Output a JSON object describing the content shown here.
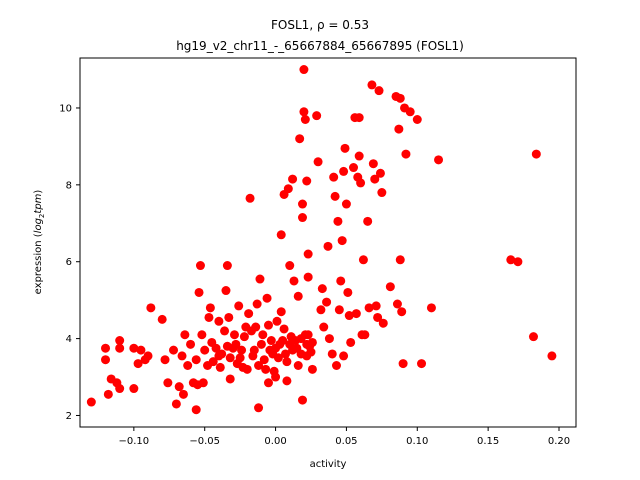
{
  "chart_data": {
    "type": "scatter",
    "title": "FOSL1, ρ = 0.53",
    "subtitle": "hg19_v2_chr11_-_65667884_65667895 (FOSL1)",
    "xlabel": "activity",
    "ylabel_prefix": "expression (",
    "ylabel_math": "log",
    "ylabel_sub": "2",
    "ylabel_math2": "tpm",
    "ylabel_suffix": ")",
    "xlim": [
      -0.138,
      0.212
    ],
    "ylim": [
      1.7,
      11.3
    ],
    "xticks": [
      -0.1,
      -0.05,
      0.0,
      0.05,
      0.1,
      0.15,
      0.2
    ],
    "xtick_labels": [
      "−0.10",
      "−0.05",
      "0.00",
      "0.05",
      "0.10",
      "0.15",
      "0.20"
    ],
    "yticks": [
      2,
      4,
      6,
      8,
      10
    ],
    "ytick_labels": [
      "2",
      "4",
      "6",
      "8",
      "10"
    ],
    "grid": false,
    "marker_color": "#ff0000",
    "points": [
      [
        -0.13,
        2.35
      ],
      [
        -0.12,
        3.75
      ],
      [
        -0.12,
        3.45
      ],
      [
        -0.118,
        2.55
      ],
      [
        -0.116,
        2.95
      ],
      [
        -0.112,
        2.85
      ],
      [
        -0.11,
        3.75
      ],
      [
        -0.11,
        3.95
      ],
      [
        -0.11,
        2.7
      ],
      [
        -0.1,
        3.75
      ],
      [
        -0.1,
        2.7
      ],
      [
        -0.097,
        3.35
      ],
      [
        -0.095,
        3.7
      ],
      [
        -0.092,
        3.45
      ],
      [
        -0.09,
        3.55
      ],
      [
        -0.088,
        4.8
      ],
      [
        -0.08,
        4.5
      ],
      [
        -0.078,
        3.45
      ],
      [
        -0.076,
        2.85
      ],
      [
        -0.072,
        3.7
      ],
      [
        -0.07,
        2.3
      ],
      [
        -0.068,
        2.75
      ],
      [
        -0.066,
        3.55
      ],
      [
        -0.065,
        2.55
      ],
      [
        -0.064,
        4.1
      ],
      [
        -0.062,
        3.3
      ],
      [
        -0.06,
        3.85
      ],
      [
        -0.058,
        2.85
      ],
      [
        -0.056,
        2.15
      ],
      [
        -0.056,
        3.45
      ],
      [
        -0.055,
        2.8
      ],
      [
        -0.054,
        5.2
      ],
      [
        -0.053,
        5.9
      ],
      [
        -0.052,
        4.1
      ],
      [
        -0.051,
        2.85
      ],
      [
        -0.05,
        3.7
      ],
      [
        -0.048,
        3.3
      ],
      [
        -0.047,
        4.55
      ],
      [
        -0.046,
        4.8
      ],
      [
        -0.045,
        3.9
      ],
      [
        -0.044,
        3.4
      ],
      [
        -0.042,
        3.75
      ],
      [
        -0.04,
        3.55
      ],
      [
        -0.04,
        4.45
      ],
      [
        -0.039,
        3.25
      ],
      [
        -0.038,
        3.6
      ],
      [
        -0.036,
        4.2
      ],
      [
        -0.035,
        5.25
      ],
      [
        -0.034,
        5.9
      ],
      [
        -0.034,
        3.8
      ],
      [
        -0.033,
        4.55
      ],
      [
        -0.032,
        3.5
      ],
      [
        -0.032,
        2.95
      ],
      [
        -0.03,
        3.75
      ],
      [
        -0.029,
        4.1
      ],
      [
        -0.028,
        3.85
      ],
      [
        -0.027,
        3.35
      ],
      [
        -0.026,
        4.85
      ],
      [
        -0.025,
        3.5
      ],
      [
        -0.024,
        3.7
      ],
      [
        -0.023,
        3.25
      ],
      [
        -0.022,
        4.05
      ],
      [
        -0.021,
        4.3
      ],
      [
        -0.02,
        3.2
      ],
      [
        -0.019,
        4.65
      ],
      [
        -0.018,
        7.65
      ],
      [
        -0.017,
        4.2
      ],
      [
        -0.016,
        3.55
      ],
      [
        -0.015,
        3.7
      ],
      [
        -0.014,
        4.3
      ],
      [
        -0.013,
        4.9
      ],
      [
        -0.012,
        3.3
      ],
      [
        -0.012,
        2.2
      ],
      [
        -0.011,
        5.55
      ],
      [
        -0.01,
        3.85
      ],
      [
        -0.009,
        4.1
      ],
      [
        -0.008,
        3.45
      ],
      [
        -0.007,
        3.2
      ],
      [
        -0.006,
        5.05
      ],
      [
        -0.005,
        4.35
      ],
      [
        -0.005,
        2.85
      ],
      [
        -0.004,
        3.7
      ],
      [
        -0.003,
        3.95
      ],
      [
        -0.002,
        3.6
      ],
      [
        -0.001,
        3.15
      ],
      [
        0.0,
        3.75
      ],
      [
        0.0,
        3.0
      ],
      [
        0.001,
        4.45
      ],
      [
        0.002,
        3.5
      ],
      [
        0.003,
        3.85
      ],
      [
        0.004,
        6.7
      ],
      [
        0.004,
        4.7
      ],
      [
        0.005,
        3.95
      ],
      [
        0.006,
        7.75
      ],
      [
        0.006,
        4.25
      ],
      [
        0.007,
        3.6
      ],
      [
        0.008,
        3.4
      ],
      [
        0.008,
        2.9
      ],
      [
        0.009,
        7.9
      ],
      [
        0.01,
        5.9
      ],
      [
        0.01,
        3.85
      ],
      [
        0.011,
        4.05
      ],
      [
        0.012,
        8.15
      ],
      [
        0.012,
        3.7
      ],
      [
        0.013,
        5.5
      ],
      [
        0.014,
        3.95
      ],
      [
        0.015,
        3.75
      ],
      [
        0.016,
        5.1
      ],
      [
        0.016,
        3.3
      ],
      [
        0.017,
        9.2
      ],
      [
        0.018,
        4.0
      ],
      [
        0.018,
        3.6
      ],
      [
        0.019,
        7.5
      ],
      [
        0.019,
        7.15
      ],
      [
        0.019,
        2.4
      ],
      [
        0.02,
        11.0
      ],
      [
        0.02,
        9.9
      ],
      [
        0.021,
        9.7
      ],
      [
        0.021,
        4.1
      ],
      [
        0.022,
        8.1
      ],
      [
        0.022,
        3.85
      ],
      [
        0.022,
        3.55
      ],
      [
        0.023,
        6.2
      ],
      [
        0.023,
        5.6
      ],
      [
        0.023,
        4.1
      ],
      [
        0.024,
        3.8
      ],
      [
        0.025,
        3.65
      ],
      [
        0.026,
        3.9
      ],
      [
        0.026,
        3.2
      ],
      [
        0.029,
        9.8
      ],
      [
        0.03,
        8.6
      ],
      [
        0.032,
        4.75
      ],
      [
        0.033,
        5.3
      ],
      [
        0.034,
        4.3
      ],
      [
        0.036,
        4.95
      ],
      [
        0.037,
        6.4
      ],
      [
        0.038,
        4.0
      ],
      [
        0.04,
        3.6
      ],
      [
        0.041,
        8.2
      ],
      [
        0.042,
        7.7
      ],
      [
        0.043,
        3.3
      ],
      [
        0.044,
        7.05
      ],
      [
        0.045,
        4.75
      ],
      [
        0.046,
        5.5
      ],
      [
        0.047,
        6.55
      ],
      [
        0.048,
        8.35
      ],
      [
        0.048,
        3.55
      ],
      [
        0.049,
        8.95
      ],
      [
        0.05,
        7.5
      ],
      [
        0.051,
        5.2
      ],
      [
        0.052,
        4.6
      ],
      [
        0.053,
        3.9
      ],
      [
        0.055,
        8.45
      ],
      [
        0.056,
        9.75
      ],
      [
        0.057,
        4.65
      ],
      [
        0.058,
        8.2
      ],
      [
        0.059,
        9.75
      ],
      [
        0.059,
        8.75
      ],
      [
        0.06,
        8.05
      ],
      [
        0.061,
        4.1
      ],
      [
        0.062,
        6.05
      ],
      [
        0.063,
        4.1
      ],
      [
        0.065,
        7.05
      ],
      [
        0.066,
        4.8
      ],
      [
        0.068,
        10.6
      ],
      [
        0.069,
        8.55
      ],
      [
        0.07,
        8.15
      ],
      [
        0.071,
        4.85
      ],
      [
        0.072,
        4.55
      ],
      [
        0.073,
        10.45
      ],
      [
        0.074,
        8.3
      ],
      [
        0.075,
        7.8
      ],
      [
        0.076,
        4.4
      ],
      [
        0.081,
        5.35
      ],
      [
        0.085,
        10.3
      ],
      [
        0.086,
        4.9
      ],
      [
        0.087,
        9.45
      ],
      [
        0.088,
        10.25
      ],
      [
        0.088,
        6.05
      ],
      [
        0.089,
        4.7
      ],
      [
        0.09,
        3.35
      ],
      [
        0.091,
        10.0
      ],
      [
        0.092,
        8.8
      ],
      [
        0.095,
        9.9
      ],
      [
        0.1,
        9.7
      ],
      [
        0.103,
        3.35
      ],
      [
        0.11,
        4.8
      ],
      [
        0.115,
        8.65
      ],
      [
        0.166,
        6.05
      ],
      [
        0.171,
        6.0
      ],
      [
        0.182,
        4.05
      ],
      [
        0.184,
        8.8
      ],
      [
        0.195,
        3.55
      ]
    ]
  }
}
